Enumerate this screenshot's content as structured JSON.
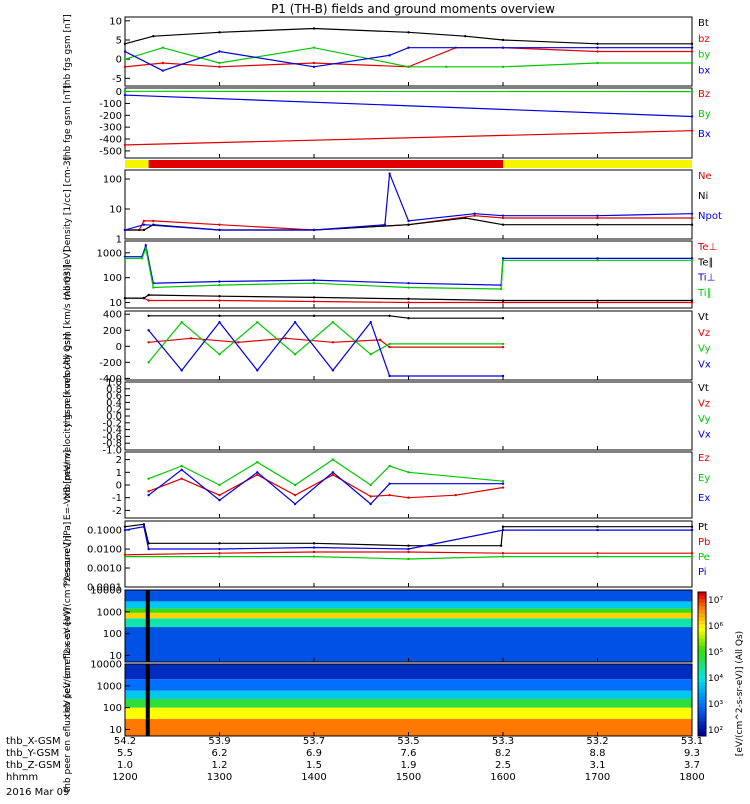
{
  "title": "P1 (TH-B) fields and ground moments overview",
  "date_label": "2016 Mar 09",
  "x_axis": {
    "ephemeris_labels": [
      "thb_X-GSM",
      "thb_Y-GSM",
      "thb_Z-GSM",
      "hhmm"
    ],
    "tick_times": [
      1200,
      1300,
      1400,
      1500,
      1600,
      1700,
      1800
    ],
    "rows": [
      [
        "54.2",
        "53.9",
        "53.7",
        "53.5",
        "53.3",
        "53.2",
        "53.1"
      ],
      [
        "5.5",
        "6.2",
        "6.9",
        "7.6",
        "8.2",
        "8.8",
        "9.3"
      ],
      [
        "1.0",
        "1.2",
        "1.5",
        "1.9",
        "2.5",
        "3.1",
        "3.7"
      ],
      [
        "1200",
        "1300",
        "1400",
        "1500",
        "1600",
        "1700",
        "1800"
      ]
    ]
  },
  "colorbar": {
    "label": "[eV/(cm^2-s-sr-eV)] (All Qs)",
    "ticks": [
      "10⁷",
      "10⁶",
      "10⁵",
      "10⁴",
      "10³",
      "10²"
    ]
  },
  "colors": {
    "black": "#000000",
    "red": "#e00000",
    "green": "#00c800",
    "blue": "#0000e0",
    "yellow": "#f5f500"
  },
  "status_bar": {
    "segments": [
      {
        "t0": 1200,
        "t1": 1225,
        "color": "#f5f500"
      },
      {
        "t0": 1225,
        "t1": 1600,
        "color": "#e00000"
      },
      {
        "t0": 1600,
        "t1": 1800,
        "color": "#f5f500"
      }
    ]
  },
  "chart_data": [
    {
      "type": "line",
      "ylabel": "thb fgs gsm [nT]",
      "ylim": [
        -7,
        11
      ],
      "yticks": [
        "10",
        "5",
        "0",
        "-5"
      ],
      "legend": [
        "Bt",
        "bz",
        "by",
        "bx"
      ],
      "series": [
        {
          "name": "Bt",
          "color": "#000000",
          "x": [
            1200,
            1230,
            1300,
            1400,
            1500,
            1560,
            1600,
            1700,
            1800
          ],
          "y": [
            4,
            6,
            7,
            8,
            7,
            6,
            5,
            4,
            4
          ]
        },
        {
          "name": "bz",
          "color": "#e00000",
          "x": [
            1200,
            1240,
            1300,
            1400,
            1500,
            1550,
            1600,
            1700,
            1800
          ],
          "y": [
            -2,
            -1,
            -2,
            -1,
            -2,
            3,
            3,
            2,
            2
          ]
        },
        {
          "name": "by",
          "color": "#00c800",
          "x": [
            1200,
            1240,
            1300,
            1400,
            1500,
            1540,
            1600,
            1700,
            1800
          ],
          "y": [
            0,
            3,
            -1,
            3,
            -2,
            -2,
            -2,
            -1,
            -1
          ]
        },
        {
          "name": "bx",
          "color": "#0000e0",
          "x": [
            1200,
            1240,
            1300,
            1400,
            1480,
            1500,
            1600,
            1700,
            1800
          ],
          "y": [
            2,
            -3,
            2,
            -2,
            1,
            3,
            3,
            3,
            3
          ]
        }
      ]
    },
    {
      "type": "line",
      "ylabel": "thb fge gsm [nT]",
      "ylim": [
        -560,
        30
      ],
      "yticks": [
        "0",
        "-100",
        "-200",
        "-300",
        "-400",
        "-500"
      ],
      "legend": [
        "Bz",
        "By",
        "Bx"
      ],
      "series": [
        {
          "name": "Bz",
          "color": "#e00000",
          "x": [
            1200,
            1800
          ],
          "y": [
            -450,
            -330
          ]
        },
        {
          "name": "By",
          "color": "#00c800",
          "x": [
            1200,
            1800
          ],
          "y": [
            2,
            0
          ]
        },
        {
          "name": "Bx",
          "color": "#0000e0",
          "x": [
            1200,
            1800
          ],
          "y": [
            -30,
            -210
          ]
        }
      ]
    },
    {
      "type": "line",
      "ylabel": "Density [1/cc] [cm-3]",
      "scale": "log",
      "ylim": [
        1,
        200
      ],
      "yticks": [
        "100",
        "10",
        "1"
      ],
      "legend": [
        "Ne",
        "Ni",
        "Npot"
      ],
      "series": [
        {
          "name": "Ne",
          "color": "#e00000",
          "x": [
            1200,
            1215,
            1220,
            1230,
            1300,
            1400,
            1500,
            1570,
            1600,
            1700,
            1800
          ],
          "y": [
            2,
            2,
            4,
            4,
            3,
            2,
            3,
            6,
            5,
            5,
            5
          ]
        },
        {
          "name": "Ni",
          "color": "#000000",
          "x": [
            1200,
            1220,
            1230,
            1300,
            1400,
            1500,
            1560,
            1600,
            1700,
            1800
          ],
          "y": [
            2,
            2,
            3,
            2,
            2,
            3,
            5,
            3,
            3,
            3
          ]
        },
        {
          "name": "Npot",
          "color": "#0000e0",
          "x": [
            1200,
            1220,
            1300,
            1400,
            1475,
            1480,
            1500,
            1570,
            1600,
            1700,
            1800
          ],
          "y": [
            2,
            3,
            2,
            2,
            3,
            150,
            4,
            7,
            6,
            6,
            7
          ]
        }
      ]
    },
    {
      "type": "line",
      "ylabel": "mom3 [eV]",
      "scale": "log",
      "ylim": [
        6,
        3000
      ],
      "yticks": [
        "1000",
        "100",
        "10"
      ],
      "legend": [
        "Te⊥",
        "Te∥",
        "Ti⊥",
        "Ti∥"
      ],
      "series": [
        {
          "name": "Te⊥",
          "color": "#e00000",
          "x": [
            1200,
            1220,
            1225,
            1300,
            1400,
            1500,
            1600,
            1700,
            1800
          ],
          "y": [
            15,
            15,
            12,
            12,
            11,
            10,
            10,
            10,
            10
          ]
        },
        {
          "name": "Te∥",
          "color": "#000000",
          "x": [
            1200,
            1220,
            1225,
            1300,
            1400,
            1500,
            1600,
            1700,
            1800
          ],
          "y": [
            15,
            15,
            20,
            18,
            16,
            14,
            12,
            12,
            12
          ]
        },
        {
          "name": "Ti⊥",
          "color": "#0000e0",
          "x": [
            1200,
            1218,
            1222,
            1230,
            1300,
            1400,
            1500,
            1598,
            1600,
            1700,
            1800
          ],
          "y": [
            700,
            700,
            2000,
            60,
            70,
            80,
            60,
            50,
            600,
            600,
            600
          ]
        },
        {
          "name": "Ti∥",
          "color": "#00c800",
          "x": [
            1200,
            1218,
            1222,
            1230,
            1300,
            1400,
            1500,
            1598,
            1600,
            1700,
            1800
          ],
          "y": [
            600,
            600,
            1500,
            40,
            50,
            60,
            40,
            35,
            500,
            500,
            500
          ]
        }
      ]
    },
    {
      "type": "line",
      "ylabel": "thb peir velocity gsm [km/s (All Qs)]",
      "ylim": [
        -420,
        440
      ],
      "yticks": [
        "400",
        "200",
        "0",
        "-200",
        "-400"
      ],
      "legend": [
        "Vt",
        "Vz",
        "Vy",
        "Vx"
      ],
      "series": [
        {
          "name": "Vt",
          "color": "#000000",
          "x": [
            1225,
            1300,
            1400,
            1480,
            1500,
            1600
          ],
          "y": [
            380,
            380,
            380,
            380,
            350,
            350
          ]
        },
        {
          "name": "Vz",
          "color": "#e00000",
          "x": [
            1225,
            1270,
            1320,
            1370,
            1420,
            1470,
            1480,
            1600
          ],
          "y": [
            50,
            100,
            50,
            100,
            50,
            80,
            -10,
            -10
          ]
        },
        {
          "name": "Vy",
          "color": "#00c800",
          "x": [
            1225,
            1260,
            1300,
            1340,
            1380,
            1420,
            1460,
            1480,
            1600
          ],
          "y": [
            -200,
            300,
            -100,
            300,
            -100,
            300,
            -100,
            30,
            30
          ]
        },
        {
          "name": "Vx",
          "color": "#0000e0",
          "x": [
            1225,
            1260,
            1300,
            1340,
            1380,
            1420,
            1460,
            1480,
            1600
          ],
          "y": [
            200,
            -300,
            300,
            -300,
            300,
            -300,
            300,
            -370,
            -370
          ]
        }
      ]
    },
    {
      "type": "line",
      "ylabel": "thb peer velocity gsm [km/s (All Qs)]",
      "ylim": [
        -1,
        1
      ],
      "yticks": [
        "1.0",
        "0.8",
        "0.6",
        "0.4",
        "0.2",
        "0.0",
        "-0.2",
        "-0.4",
        "-0.6",
        "-0.8",
        "-1.0"
      ],
      "legend": [
        "Vt",
        "Vz",
        "Vy",
        "Vx"
      ],
      "series": []
    },
    {
      "type": "line",
      "ylabel": "E=-VxB [mV/m]",
      "ylim": [
        -2.6,
        2.6
      ],
      "yticks": [
        "2",
        "1",
        "0",
        "-1",
        "-2"
      ],
      "legend": [
        "Ez",
        "Ey",
        "Ex"
      ],
      "series": [
        {
          "name": "Ez",
          "color": "#e00000",
          "x": [
            1225,
            1260,
            1300,
            1340,
            1380,
            1420,
            1460,
            1480,
            1500,
            1550,
            1600
          ],
          "y": [
            -0.5,
            0.5,
            -0.8,
            0.8,
            -0.8,
            0.8,
            -0.9,
            -0.8,
            -1.0,
            -0.8,
            -0.2
          ]
        },
        {
          "name": "Ey",
          "color": "#00c800",
          "x": [
            1225,
            1260,
            1300,
            1340,
            1380,
            1420,
            1460,
            1480,
            1500,
            1600
          ],
          "y": [
            0.5,
            1.5,
            0.0,
            1.8,
            0.0,
            2.0,
            0.0,
            1.5,
            1.0,
            0.3
          ]
        },
        {
          "name": "Ex",
          "color": "#0000e0",
          "x": [
            1225,
            1260,
            1300,
            1340,
            1380,
            1420,
            1460,
            1480,
            1600
          ],
          "y": [
            -0.8,
            1.2,
            -1.2,
            1.0,
            -1.5,
            1.0,
            -1.5,
            0.1,
            0.1
          ]
        }
      ]
    },
    {
      "type": "line",
      "ylabel": "Pressure [nPa]",
      "scale": "log",
      "ylim": [
        0.0001,
        0.3
      ],
      "yticks": [
        "0.1000",
        "0.0100",
        "0.0010",
        "0.0001"
      ],
      "legend": [
        "Pt",
        "Pb",
        "Pe",
        "Pi"
      ],
      "series": [
        {
          "name": "Pt",
          "color": "#000000",
          "x": [
            1200,
            1220,
            1225,
            1300,
            1400,
            1500,
            1598,
            1600,
            1700,
            1800
          ],
          "y": [
            0.15,
            0.2,
            0.02,
            0.02,
            0.02,
            0.015,
            0.015,
            0.15,
            0.15,
            0.15
          ]
        },
        {
          "name": "Pb",
          "color": "#e00000",
          "x": [
            1200,
            1300,
            1400,
            1500,
            1600,
            1700,
            1800
          ],
          "y": [
            0.005,
            0.006,
            0.007,
            0.007,
            0.006,
            0.006,
            0.006
          ]
        },
        {
          "name": "Pe",
          "color": "#00c800",
          "x": [
            1200,
            1300,
            1400,
            1500,
            1600,
            1700,
            1800
          ],
          "y": [
            0.004,
            0.004,
            0.004,
            0.003,
            0.004,
            0.004,
            0.004
          ]
        },
        {
          "name": "Pi",
          "color": "#0000e0",
          "x": [
            1200,
            1220,
            1225,
            1300,
            1400,
            1500,
            1600,
            1700,
            1800
          ],
          "y": [
            0.1,
            0.15,
            0.01,
            0.01,
            0.012,
            0.01,
            0.1,
            0.1,
            0.1
          ]
        }
      ]
    },
    {
      "type": "heatmap",
      "ylabel": "thb peir en eflux eV [eV/(cm^2-s-sr-eV)]",
      "scale": "log",
      "ylim": [
        5,
        10000
      ],
      "yticks": [
        "10000",
        "1000",
        "100",
        "10"
      ],
      "bands": [
        {
          "ylo": 5,
          "yhi": 200,
          "level": 0.15
        },
        {
          "ylo": 200,
          "yhi": 500,
          "level": 0.45
        },
        {
          "ylo": 500,
          "yhi": 900,
          "level": 0.8
        },
        {
          "ylo": 900,
          "yhi": 1400,
          "level": 0.6
        },
        {
          "ylo": 1400,
          "yhi": 3000,
          "level": 0.35
        },
        {
          "ylo": 3000,
          "yhi": 10000,
          "level": 0.15
        }
      ],
      "spike_time": 1222
    },
    {
      "type": "heatmap",
      "ylabel": "thb peer en eflux eV [eV/(cm^2-s-sr-eV)]",
      "scale": "log",
      "ylim": [
        5,
        10000
      ],
      "yticks": [
        "10000",
        "1000",
        "100",
        "10"
      ],
      "bands": [
        {
          "ylo": 5,
          "yhi": 30,
          "level": 0.9
        },
        {
          "ylo": 30,
          "yhi": 100,
          "level": 0.75
        },
        {
          "ylo": 100,
          "yhi": 250,
          "level": 0.55
        },
        {
          "ylo": 250,
          "yhi": 600,
          "level": 0.35
        },
        {
          "ylo": 600,
          "yhi": 2000,
          "level": 0.2
        },
        {
          "ylo": 2000,
          "yhi": 10000,
          "level": 0.08
        }
      ],
      "spike_time": 1222
    }
  ]
}
